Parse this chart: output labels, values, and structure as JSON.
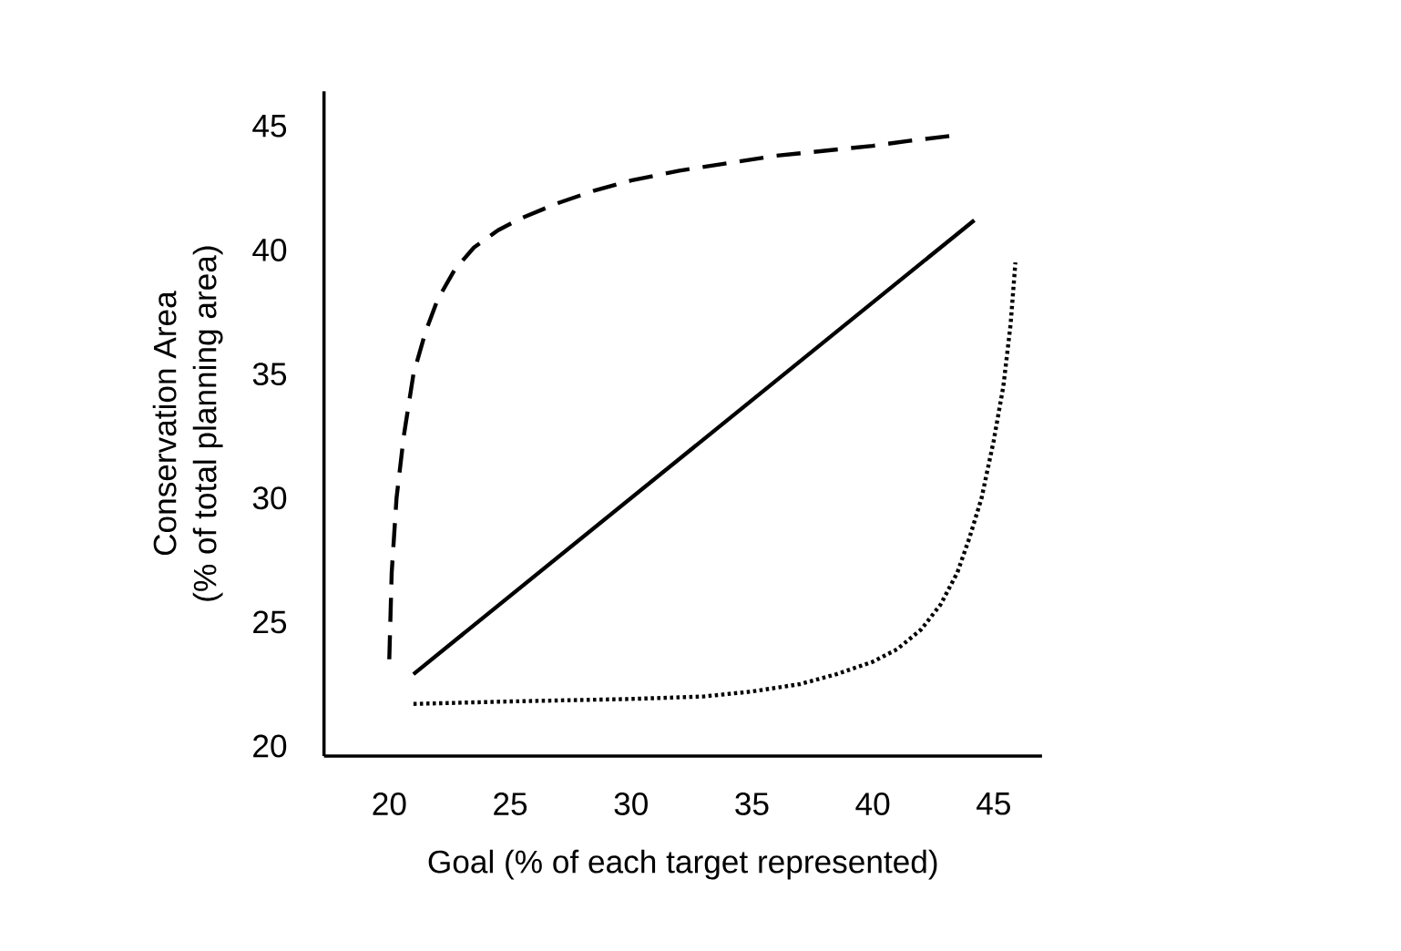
{
  "chart_data": {
    "type": "line",
    "xlabel": "Goal (% of each target represented)",
    "ylabel": "Conservation Area\n(% of total planning area)",
    "xlim": [
      17.3,
      47
    ],
    "ylim": [
      19.6,
      46.4
    ],
    "xticks": [
      20,
      25,
      30,
      35,
      40,
      45
    ],
    "yticks": [
      20,
      25,
      30,
      35,
      40,
      45
    ],
    "grid": false,
    "marker": "none",
    "series": [
      {
        "color": "#000000",
        "line_style": "dashed",
        "x": [
          20,
          20.1,
          20.3,
          20.6,
          21,
          21.5,
          22,
          22.7,
          23.5,
          24.5,
          25.5,
          27,
          28.5,
          30,
          32,
          34,
          36,
          38,
          40,
          41.5,
          43.2
        ],
        "values": [
          23.5,
          27,
          30,
          32.5,
          35,
          36.7,
          38,
          39.2,
          40.1,
          40.8,
          41.3,
          41.9,
          42.4,
          42.8,
          43.2,
          43.5,
          43.8,
          44,
          44.2,
          44.4,
          44.6
        ]
      },
      {
        "color": "#000000",
        "line_style": "solid",
        "x": [
          21,
          44.2
        ],
        "values": [
          22.9,
          41.2
        ]
      },
      {
        "color": "#000000",
        "line_style": "dotted",
        "x": [
          21,
          25,
          30,
          33,
          35,
          37,
          38.5,
          40,
          41,
          42,
          42.8,
          43.5,
          44,
          44.5,
          45,
          45.4,
          45.7,
          45.9
        ],
        "values": [
          21.7,
          21.8,
          21.9,
          22,
          22.2,
          22.5,
          22.9,
          23.4,
          23.9,
          24.7,
          25.7,
          27,
          28.4,
          30,
          32.3,
          34.5,
          37,
          39.5
        ]
      }
    ]
  }
}
